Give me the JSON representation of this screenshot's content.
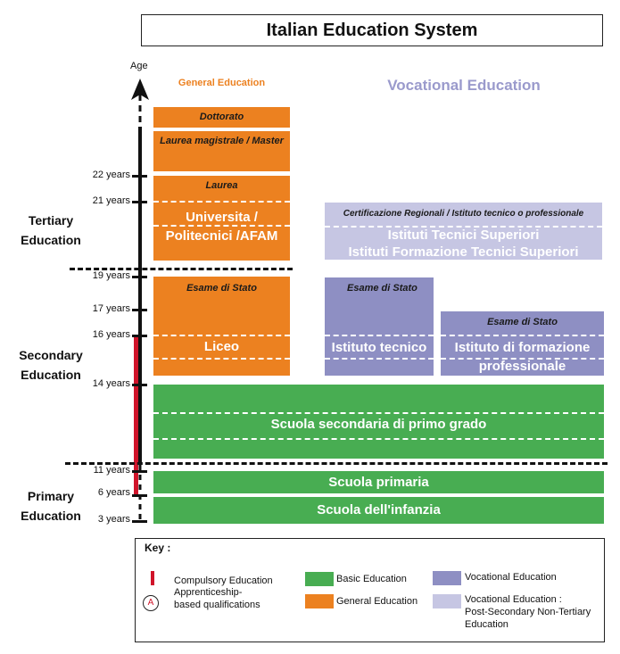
{
  "title": "Italian Education System",
  "axis": {
    "label": "Age",
    "ticks": [
      "22 years",
      "21 years",
      "19 years",
      "17 years",
      "16 years",
      "14 years",
      "11 years",
      "6 years",
      "3 years"
    ]
  },
  "sections": {
    "tertiary": "Tertiary Education",
    "secondary": "Secondary Education",
    "primary": "Primary Education"
  },
  "headers": {
    "general": "General Education",
    "vocational": "Vocational Education"
  },
  "general": {
    "dottorato": "Dottorato",
    "magistrale": "Laurea magistrale / Master",
    "laurea": "Laurea",
    "universita_1": "Universita /",
    "universita_2": "Politecnici /AFAM",
    "esame": "Esame di Stato",
    "liceo": "Liceo"
  },
  "vocational": {
    "post_secondary_title": "Certificazione Regionali  / Istituto tecnico o professionale",
    "its_1": "Istituti Tecnici Superiori",
    "its_2": "Istituti Formazione Tecnici Superiori",
    "tecnico_exam": "Esame di Stato",
    "tecnico": "Istituto tecnico",
    "formazione_exam": "Esame di Stato",
    "formazione_1": "Istituto di formazione",
    "formazione_2": "professionale"
  },
  "basic": {
    "secondaria": "Scuola secondaria di primo grado",
    "primaria": "Scuola primaria",
    "infanzia": "Scuola dell'infanzia"
  },
  "key": {
    "title": "Key :",
    "compulsory": "Compulsory Education",
    "apprenticeship_symbol": "A",
    "apprenticeship_1": "Apprenticeship-",
    "apprenticeship_2": "based qualifications",
    "basic": "Basic Education",
    "general": "General Education",
    "vocational": "Vocational Education",
    "post_secondary_1": "Vocational Education :",
    "post_secondary_2": "Post-Secondary Non-Tertiary",
    "post_secondary_3": "Education"
  },
  "colors": {
    "general": "#ec8120",
    "basic": "#48ad52",
    "vocational": "#8e8fc3",
    "post_secondary": "#c6c6e3",
    "compulsory": "#d0142a",
    "vocational_header": "#9a9acc"
  }
}
